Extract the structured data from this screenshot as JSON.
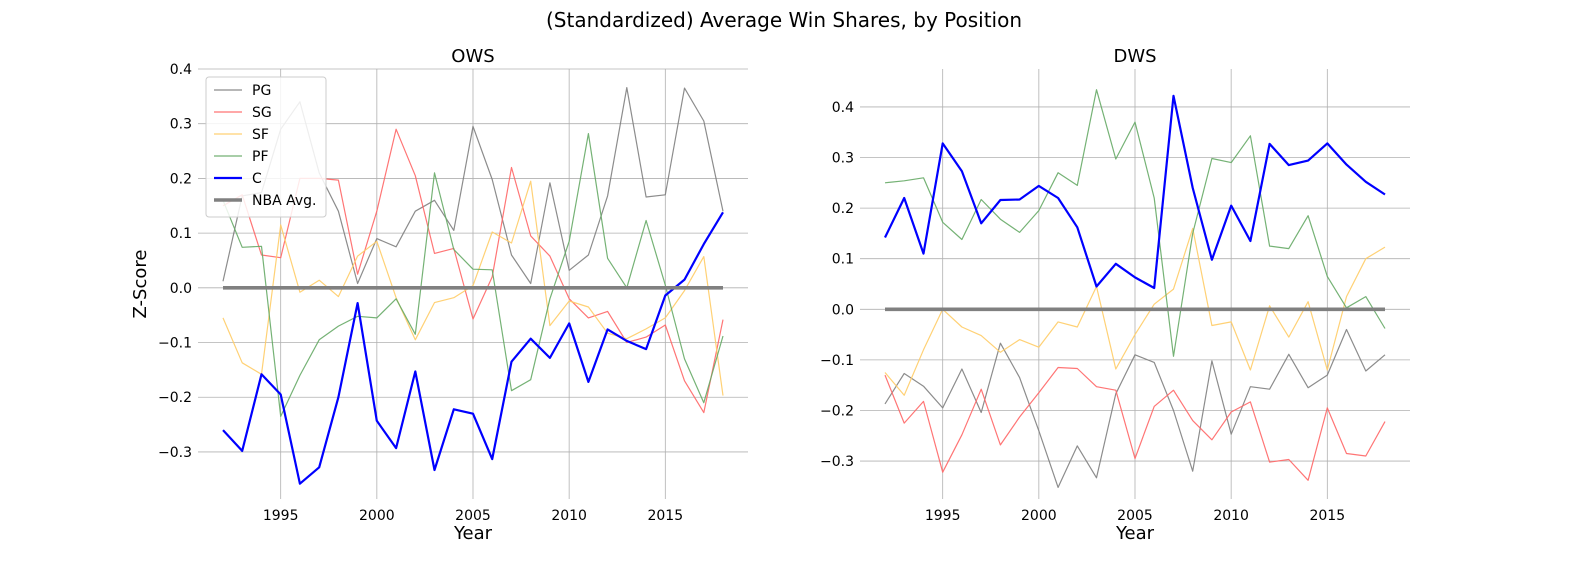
{
  "figure": {
    "suptitle": "(Standardized) Average Win Shares, by Position"
  },
  "colors": {
    "PG": "#808080",
    "SG": "#ff6666",
    "SF": "#ffcc66",
    "PF": "#66aa66",
    "C": "#0000ff",
    "NBA Avg.": "#808080",
    "grid": "#b0b0b0"
  },
  "chart_data": [
    {
      "type": "line",
      "title": "OWS",
      "xlabel": "Year",
      "ylabel": "Z-Score",
      "xlim": [
        1990.7,
        2019.3
      ],
      "ylim": [
        -0.386,
        0.4
      ],
      "xticks": [
        1995,
        2000,
        2005,
        2010,
        2015
      ],
      "yticks": [
        -0.3,
        -0.2,
        -0.1,
        0.0,
        0.1,
        0.2,
        0.3,
        0.4
      ],
      "ytick_labels": [
        "−0.3",
        "−0.2",
        "−0.1",
        "0.0",
        "0.1",
        "0.2",
        "0.3",
        "0.4"
      ],
      "grid": true,
      "legend": "top-left",
      "x": [
        1992,
        1993,
        1994,
        1995,
        1996,
        1997,
        1998,
        1999,
        2000,
        2001,
        2002,
        2003,
        2004,
        2005,
        2006,
        2007,
        2008,
        2009,
        2010,
        2011,
        2012,
        2013,
        2014,
        2015,
        2016,
        2017,
        2018
      ],
      "series": [
        {
          "name": "PG",
          "values": [
            0.012,
            0.168,
            0.174,
            0.29,
            0.34,
            0.21,
            0.14,
            0.008,
            0.09,
            0.075,
            0.14,
            0.16,
            0.105,
            0.295,
            0.198,
            0.06,
            0.008,
            0.192,
            0.032,
            0.06,
            0.168,
            0.366,
            0.166,
            0.17,
            0.365,
            0.305,
            0.14
          ]
        },
        {
          "name": "SG",
          "values": [
            0.15,
            0.17,
            0.06,
            0.055,
            0.2,
            0.2,
            0.197,
            0.025,
            0.14,
            0.29,
            0.205,
            0.063,
            0.072,
            -0.057,
            0.02,
            0.22,
            0.095,
            0.058,
            -0.02,
            -0.055,
            -0.043,
            -0.1,
            -0.09,
            -0.068,
            -0.17,
            -0.228,
            -0.058
          ]
        },
        {
          "name": "SF",
          "values": [
            -0.055,
            -0.137,
            -0.158,
            0.115,
            -0.008,
            0.014,
            -0.016,
            0.058,
            0.085,
            -0.018,
            -0.095,
            -0.027,
            -0.018,
            0.004,
            0.102,
            0.082,
            0.195,
            -0.069,
            -0.024,
            -0.035,
            -0.083,
            -0.093,
            -0.075,
            -0.055,
            -0.005,
            0.057,
            -0.197
          ]
        },
        {
          "name": "PF",
          "values": [
            0.16,
            0.074,
            0.076,
            -0.235,
            -0.16,
            -0.095,
            -0.07,
            -0.052,
            -0.055,
            -0.02,
            -0.085,
            0.21,
            0.07,
            0.034,
            0.033,
            -0.188,
            -0.168,
            -0.02,
            0.085,
            0.282,
            0.054,
            0.0,
            0.123,
            0.005,
            -0.13,
            -0.21,
            -0.088
          ]
        },
        {
          "name": "C",
          "values": [
            -0.26,
            -0.298,
            -0.158,
            -0.195,
            -0.358,
            -0.328,
            -0.2,
            -0.028,
            -0.243,
            -0.293,
            -0.153,
            -0.333,
            -0.222,
            -0.23,
            -0.313,
            -0.135,
            -0.093,
            -0.128,
            -0.065,
            -0.172,
            -0.076,
            -0.097,
            -0.112,
            -0.014,
            0.015,
            0.08,
            0.138
          ]
        },
        {
          "name": "NBA Avg.",
          "values": [
            0,
            0,
            0,
            0,
            0,
            0,
            0,
            0,
            0,
            0,
            0,
            0,
            0,
            0,
            0,
            0,
            0,
            0,
            0,
            0,
            0,
            0,
            0,
            0,
            0,
            0,
            0
          ]
        }
      ]
    },
    {
      "type": "line",
      "title": "DWS",
      "xlabel": "Year",
      "ylabel": "",
      "xlim": [
        1990.7,
        2019.3
      ],
      "ylim": [
        -0.375,
        0.475
      ],
      "xticks": [
        1995,
        2000,
        2005,
        2010,
        2015
      ],
      "yticks": [
        -0.3,
        -0.2,
        -0.1,
        0.0,
        0.1,
        0.2,
        0.3,
        0.4
      ],
      "ytick_labels": [
        "−0.3",
        "−0.2",
        "−0.1",
        "0.0",
        "0.1",
        "0.2",
        "0.3",
        "0.4"
      ],
      "grid": true,
      "legend": "none",
      "x": [
        1992,
        1993,
        1994,
        1995,
        1996,
        1997,
        1998,
        1999,
        2000,
        2001,
        2002,
        2003,
        2004,
        2005,
        2006,
        2007,
        2008,
        2009,
        2010,
        2011,
        2012,
        2013,
        2014,
        2015,
        2016,
        2017,
        2018
      ],
      "series": [
        {
          "name": "PG",
          "values": [
            -0.187,
            -0.127,
            -0.152,
            -0.195,
            -0.118,
            -0.204,
            -0.067,
            -0.135,
            -0.24,
            -0.352,
            -0.27,
            -0.333,
            -0.167,
            -0.09,
            -0.105,
            -0.2,
            -0.32,
            -0.102,
            -0.247,
            -0.153,
            -0.158,
            -0.089,
            -0.155,
            -0.13,
            -0.04,
            -0.122,
            -0.09
          ]
        },
        {
          "name": "SG",
          "values": [
            -0.13,
            -0.225,
            -0.182,
            -0.322,
            -0.248,
            -0.158,
            -0.268,
            -0.213,
            -0.165,
            -0.115,
            -0.117,
            -0.153,
            -0.16,
            -0.295,
            -0.192,
            -0.16,
            -0.22,
            -0.258,
            -0.203,
            -0.183,
            -0.302,
            -0.297,
            -0.338,
            -0.195,
            -0.285,
            -0.29,
            -0.222
          ]
        },
        {
          "name": "SF",
          "values": [
            -0.125,
            -0.17,
            -0.08,
            0.0,
            -0.035,
            -0.052,
            -0.085,
            -0.06,
            -0.075,
            -0.025,
            -0.035,
            0.045,
            -0.118,
            -0.05,
            0.01,
            0.04,
            0.16,
            -0.032,
            -0.025,
            -0.12,
            0.007,
            -0.055,
            0.015,
            -0.12,
            0.025,
            0.1,
            0.123
          ]
        },
        {
          "name": "PF",
          "values": [
            0.25,
            0.254,
            0.26,
            0.172,
            0.138,
            0.217,
            0.178,
            0.152,
            0.195,
            0.27,
            0.245,
            0.434,
            0.297,
            0.37,
            0.22,
            -0.093,
            0.15,
            0.298,
            0.29,
            0.343,
            0.125,
            0.12,
            0.185,
            0.065,
            0.003,
            0.025,
            -0.038
          ]
        },
        {
          "name": "C",
          "values": [
            0.142,
            0.22,
            0.11,
            0.328,
            0.273,
            0.17,
            0.216,
            0.217,
            0.244,
            0.22,
            0.162,
            0.045,
            0.09,
            0.063,
            0.042,
            0.422,
            0.24,
            0.098,
            0.205,
            0.135,
            0.327,
            0.285,
            0.294,
            0.328,
            0.286,
            0.252,
            0.227
          ]
        },
        {
          "name": "NBA Avg.",
          "values": [
            0,
            0,
            0,
            0,
            0,
            0,
            0,
            0,
            0,
            0,
            0,
            0,
            0,
            0,
            0,
            0,
            0,
            0,
            0,
            0,
            0,
            0,
            0,
            0,
            0,
            0,
            0
          ]
        }
      ]
    }
  ]
}
